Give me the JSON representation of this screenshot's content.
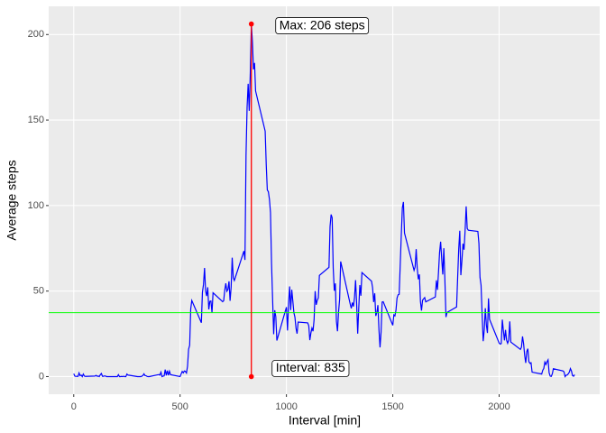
{
  "chart_data": {
    "type": "line",
    "xlabel": "Interval [min]",
    "ylabel": "Average steps",
    "xlim": [
      -117.75,
      2472.75
    ],
    "ylim": [
      -10.3,
      216.5
    ],
    "xticks": [
      0,
      500,
      1000,
      1500,
      2000
    ],
    "yticks": [
      0,
      50,
      100,
      150,
      200
    ],
    "grid": true,
    "x": [
      0,
      5,
      10,
      15,
      20,
      25,
      30,
      35,
      40,
      45,
      50,
      55,
      100,
      105,
      110,
      115,
      120,
      125,
      130,
      135,
      140,
      145,
      150,
      155,
      200,
      205,
      210,
      215,
      220,
      225,
      230,
      235,
      240,
      245,
      250,
      255,
      300,
      305,
      310,
      315,
      320,
      325,
      330,
      335,
      340,
      345,
      350,
      355,
      400,
      405,
      410,
      415,
      420,
      425,
      430,
      435,
      440,
      445,
      450,
      455,
      500,
      505,
      510,
      515,
      520,
      525,
      530,
      535,
      540,
      545,
      550,
      555,
      600,
      605,
      610,
      615,
      620,
      625,
      630,
      635,
      640,
      645,
      650,
      655,
      700,
      705,
      710,
      715,
      720,
      725,
      730,
      735,
      740,
      745,
      750,
      755,
      800,
      805,
      810,
      815,
      820,
      825,
      830,
      835,
      840,
      845,
      850,
      855,
      900,
      905,
      910,
      915,
      920,
      925,
      930,
      935,
      940,
      945,
      950,
      955,
      1000,
      1005,
      1010,
      1015,
      1020,
      1025,
      1030,
      1035,
      1040,
      1045,
      1050,
      1055,
      1100,
      1105,
      1110,
      1115,
      1120,
      1125,
      1130,
      1135,
      1140,
      1145,
      1150,
      1155,
      1200,
      1205,
      1210,
      1215,
      1220,
      1225,
      1230,
      1235,
      1240,
      1245,
      1250,
      1255,
      1300,
      1305,
      1310,
      1315,
      1320,
      1325,
      1330,
      1335,
      1340,
      1345,
      1350,
      1355,
      1400,
      1405,
      1410,
      1415,
      1420,
      1425,
      1430,
      1435,
      1440,
      1445,
      1450,
      1455,
      1500,
      1505,
      1510,
      1515,
      1520,
      1525,
      1530,
      1535,
      1540,
      1545,
      1550,
      1555,
      1600,
      1605,
      1610,
      1615,
      1620,
      1625,
      1630,
      1635,
      1640,
      1645,
      1650,
      1655,
      1700,
      1705,
      1710,
      1715,
      1720,
      1725,
      1730,
      1735,
      1740,
      1745,
      1750,
      1755,
      1800,
      1805,
      1810,
      1815,
      1820,
      1825,
      1830,
      1835,
      1840,
      1845,
      1850,
      1855,
      1900,
      1905,
      1910,
      1915,
      1920,
      1925,
      1930,
      1935,
      1940,
      1945,
      1950,
      1955,
      2000,
      2005,
      2010,
      2015,
      2020,
      2025,
      2030,
      2035,
      2040,
      2045,
      2050,
      2055,
      2100,
      2105,
      2110,
      2115,
      2120,
      2125,
      2130,
      2135,
      2140,
      2145,
      2150,
      2155,
      2200,
      2205,
      2210,
      2215,
      2220,
      2225,
      2230,
      2235,
      2240,
      2245,
      2250,
      2255,
      2300,
      2305,
      2310,
      2315,
      2320,
      2325,
      2330,
      2335,
      2340,
      2345,
      2350,
      2355
    ],
    "series": [
      {
        "color": "#0000ff",
        "values": [
          1.7,
          0.3,
          0.1,
          0.2,
          0.1,
          2.1,
          0.5,
          0.9,
          0,
          1.5,
          0.3,
          0.1,
          0.3,
          0.7,
          0.2,
          0.3,
          0,
          1.1,
          1.8,
          0.2,
          0.2,
          0.4,
          0.3,
          0,
          0,
          0,
          1.1,
          0,
          0,
          0.1,
          0,
          0.2,
          0,
          0,
          1.5,
          0.9,
          0,
          0,
          0,
          0,
          0.2,
          0.6,
          1.6,
          0.6,
          0.5,
          0.1,
          0,
          0,
          1.2,
          0.9,
          2.6,
          0,
          0.3,
          0.4,
          4.1,
          0.7,
          3.5,
          0.8,
          3.1,
          1.1,
          0,
          1.6,
          3.0,
          2.2,
          3.3,
          3.0,
          2.1,
          6.1,
          16.0,
          18.3,
          39.5,
          44.5,
          31.5,
          49.3,
          53.8,
          63.5,
          50.0,
          47.1,
          52.2,
          39.3,
          44.0,
          44.2,
          37.4,
          49.0,
          43.8,
          44.4,
          50.5,
          54.5,
          49.9,
          50.98,
          55.7,
          44.3,
          52.3,
          69.5,
          57.8,
          56.2,
          73.4,
          68.2,
          129.4,
          157.5,
          171.2,
          155.4,
          177.3,
          206.17,
          195.9,
          179.6,
          183.4,
          167.0,
          143.5,
          124.0,
          109.1,
          108.1,
          103.7,
          95.97,
          66.2,
          45.2,
          24.8,
          38.8,
          34.98,
          21.1,
          40.6,
          26.98,
          42.4,
          52.7,
          38.9,
          50.8,
          44.3,
          37.4,
          34.7,
          28.3,
          25.1,
          31.9,
          31.4,
          29.7,
          21.3,
          25.5,
          28.4,
          26.5,
          33.3,
          49.98,
          42.0,
          44.6,
          46.0,
          59.2,
          63.9,
          87.7,
          94.8,
          92.8,
          63.4,
          50.2,
          54.5,
          32.4,
          26.5,
          37.7,
          45.1,
          67.3,
          42.3,
          39.9,
          43.3,
          40.98,
          46.2,
          56.4,
          42.8,
          25.1,
          39.97,
          53.5,
          47.3,
          60.8,
          55.8,
          51.96,
          43.6,
          48.7,
          35.5,
          37.5,
          41.8,
          27.5,
          17.1,
          26.1,
          43.6,
          43.8,
          30.0,
          36.1,
          35.5,
          38.8,
          45.96,
          47.8,
          48.1,
          65.3,
          82.9,
          98.7,
          102.1,
          83.96,
          62.1,
          64.1,
          74.5,
          63.2,
          56.9,
          59.8,
          43.9,
          38.6,
          44.7,
          45.5,
          46.2,
          43.7,
          46.6,
          56.3,
          50.7,
          61.2,
          72.7,
          78.9,
          68.9,
          59.7,
          75.1,
          56.5,
          34.8,
          37.5,
          40.7,
          58.0,
          74.7,
          85.3,
          59.3,
          67.8,
          77.7,
          74.2,
          85.3,
          99.5,
          86.6,
          85.6,
          84.9,
          77.8,
          58.0,
          53.4,
          36.3,
          20.7,
          27.4,
          40.0,
          30.2,
          25.5,
          45.7,
          33.5,
          19.6,
          19.0,
          19.3,
          33.3,
          26.8,
          21.2,
          27.3,
          21.3,
          19.5,
          21.3,
          32.3,
          20.2,
          15.9,
          17.2,
          23.5,
          19.2,
          12.5,
          8.0,
          14.7,
          16.3,
          8.7,
          7.8,
          8.1,
          2.6,
          1.5,
          3.7,
          4.8,
          8.5,
          7.1,
          8.7,
          9.8,
          2.2,
          0.3,
          0.1,
          1.6,
          4.6,
          3.3,
          2.8,
          0,
          0.8,
          0.96,
          1.6,
          2.6,
          4.7,
          3.3,
          0.6,
          0.2,
          1.1
        ]
      }
    ],
    "mean_line": {
      "value": 37.38,
      "color": "#00ff00"
    },
    "max_point": {
      "x": 835,
      "y": 206.17,
      "color": "#ff0000"
    },
    "annotations": [
      "Max: 206 steps",
      "Interval: 835"
    ]
  }
}
